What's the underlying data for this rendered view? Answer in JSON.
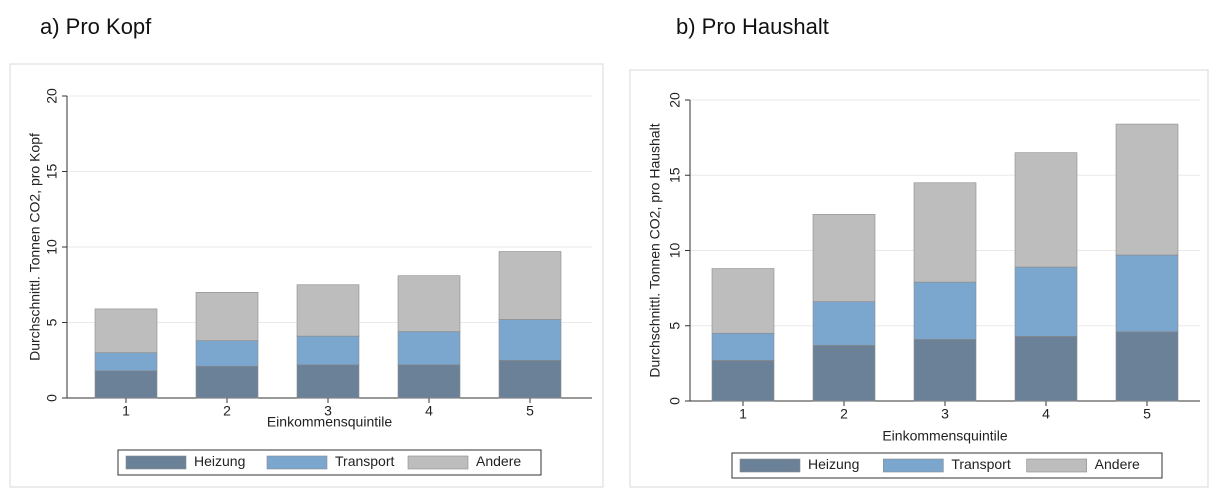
{
  "chart_data": [
    {
      "type": "bar",
      "stacked": true,
      "title": "a)   Pro Kopf",
      "xlabel": "Einkommensquintile",
      "ylabel": "Durchschnittl. Tonnen CO2, pro Kopf",
      "categories": [
        "1",
        "2",
        "3",
        "4",
        "5"
      ],
      "series": [
        {
          "name": "Heizung",
          "color": "#6b8198",
          "values": [
            1.8,
            2.1,
            2.2,
            2.2,
            2.5
          ]
        },
        {
          "name": "Transport",
          "color": "#7ba7cf",
          "values": [
            1.2,
            1.7,
            1.9,
            2.2,
            2.7
          ]
        },
        {
          "name": "Andere",
          "color": "#bdbdbd",
          "values": [
            2.9,
            3.2,
            3.4,
            3.7,
            4.5
          ]
        }
      ],
      "ylim": [
        0,
        20
      ],
      "yticks": [
        0,
        5,
        10,
        15,
        20
      ],
      "grid": true,
      "legend": "bottom"
    },
    {
      "type": "bar",
      "stacked": true,
      "title": "b) Pro Haushalt",
      "xlabel": "Einkommensquintile",
      "ylabel": "Durchschnittl. Tonnen CO2, pro Haushalt",
      "categories": [
        "1",
        "2",
        "3",
        "4",
        "5"
      ],
      "series": [
        {
          "name": "Heizung",
          "color": "#6b8198",
          "values": [
            2.7,
            3.7,
            4.1,
            4.3,
            4.6
          ]
        },
        {
          "name": "Transport",
          "color": "#7ba7cf",
          "values": [
            1.8,
            2.9,
            3.8,
            4.6,
            5.1
          ]
        },
        {
          "name": "Andere",
          "color": "#bdbdbd",
          "values": [
            4.3,
            5.8,
            6.6,
            7.6,
            8.7
          ]
        }
      ],
      "ylim": [
        0,
        20
      ],
      "yticks": [
        0,
        5,
        10,
        15,
        20
      ],
      "grid": true,
      "legend": "bottom"
    }
  ]
}
